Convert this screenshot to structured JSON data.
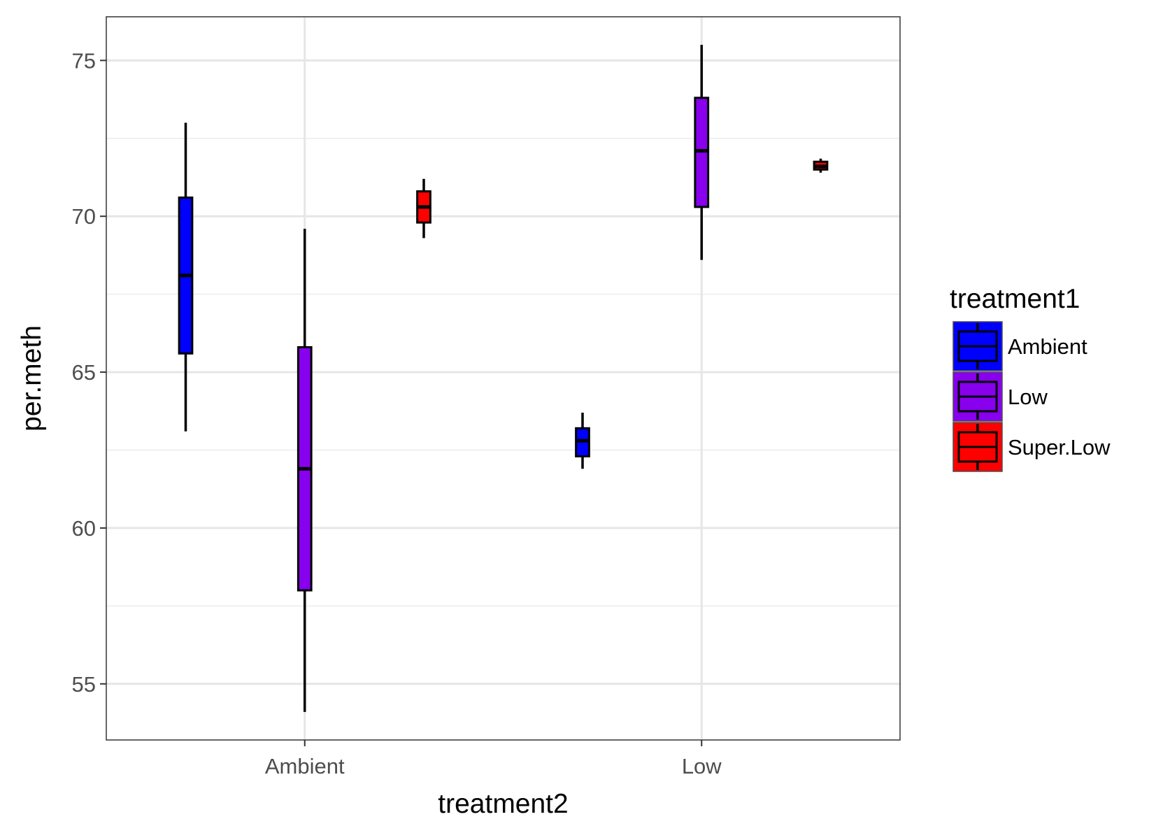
{
  "chart_data": {
    "type": "boxplot",
    "xlabel": "treatment2",
    "ylabel": "per.meth",
    "categories": [
      "Ambient",
      "Low"
    ],
    "ylim": [
      53.2,
      76.4
    ],
    "yticks": [
      55,
      60,
      65,
      70,
      75
    ],
    "grid": true,
    "legend": {
      "title": "treatment1",
      "position": "right",
      "entries": [
        "Ambient",
        "Low",
        "Super.Low"
      ]
    },
    "colors": {
      "Ambient": "#0000ff",
      "Low": "#8800ee",
      "Super.Low": "#ff0000"
    },
    "series": [
      {
        "name": "Ambient",
        "boxes": [
          {
            "category": "Ambient",
            "min": 63.1,
            "q1": 65.6,
            "median": 68.1,
            "q3": 70.6,
            "max": 73.0
          },
          {
            "category": "Low",
            "min": 61.9,
            "q1": 62.3,
            "median": 62.8,
            "q3": 63.2,
            "max": 63.7
          }
        ]
      },
      {
        "name": "Low",
        "boxes": [
          {
            "category": "Ambient",
            "min": 54.1,
            "q1": 58.0,
            "median": 61.9,
            "q3": 65.8,
            "max": 69.6
          },
          {
            "category": "Low",
            "min": 68.6,
            "q1": 70.3,
            "median": 72.1,
            "q3": 73.8,
            "max": 75.5
          }
        ]
      },
      {
        "name": "Super.Low",
        "boxes": [
          {
            "category": "Ambient",
            "min": 69.3,
            "q1": 69.8,
            "median": 70.3,
            "q3": 70.8,
            "max": 71.2
          },
          {
            "category": "Low",
            "min": 71.4,
            "q1": 71.5,
            "median": 71.6,
            "q3": 71.75,
            "max": 71.85
          }
        ]
      }
    ]
  }
}
